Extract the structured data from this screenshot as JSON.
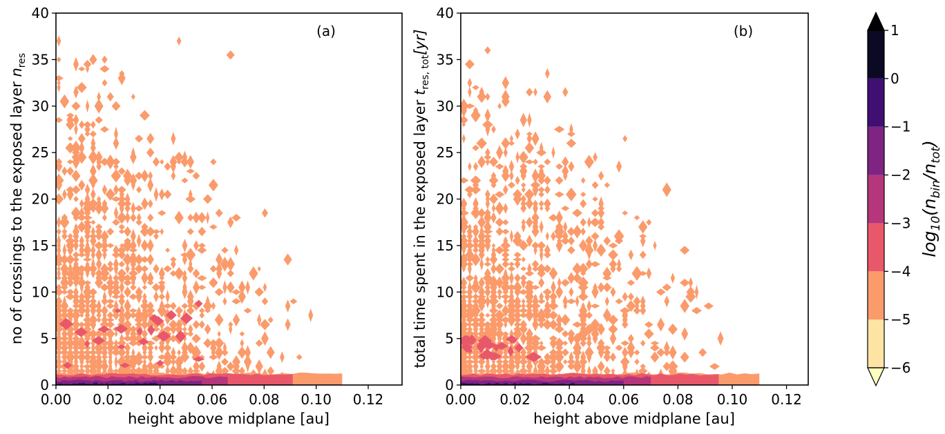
{
  "chart_data": [
    {
      "type": "heatmap",
      "panel_label": "(a)",
      "xlabel": "height above midplane [au]",
      "ylabel": "no of crossings to the exposed layer n_res",
      "ylabel_text": "no of crossings to the exposed layer ",
      "ylabel_var": "n",
      "ylabel_sub": "res",
      "xlim": [
        0,
        0.133
      ],
      "ylim": [
        0,
        40
      ],
      "xticks": [
        "0.00",
        "0.02",
        "0.04",
        "0.06",
        "0.08",
        "0.10",
        "0.12"
      ],
      "yticks": [
        "0",
        "5",
        "10",
        "15",
        "20",
        "25",
        "30",
        "35",
        "40"
      ],
      "density_summary": {
        "max_extent_x": 0.11,
        "max_extent_y": 40,
        "dense_core": {
          "x": [
            0,
            0.056
          ],
          "y": [
            0,
            1.2
          ],
          "level": "-2 to 0"
        },
        "mid_band": {
          "x": [
            0,
            0.055
          ],
          "y": [
            2,
            9
          ],
          "level": "-4 to -3"
        },
        "sparse": {
          "level": "-5 to -4"
        }
      }
    },
    {
      "type": "heatmap",
      "panel_label": "(b)",
      "xlabel": "height above midplane [au]",
      "ylabel": "total time spent in the exposed layer t_res,tot[yr]",
      "ylabel_text": "total time spent in the exposed layer ",
      "ylabel_var": "t",
      "ylabel_sub": "res, tot",
      "ylabel_tail": "[yr]",
      "xlim": [
        0,
        0.128
      ],
      "ylim": [
        0,
        40
      ],
      "xticks": [
        "0.00",
        "0.02",
        "0.04",
        "0.06",
        "0.08",
        "0.10",
        "0.12"
      ],
      "yticks": [
        "0",
        "5",
        "10",
        "15",
        "20",
        "25",
        "30",
        "35",
        "40"
      ],
      "density_summary": {
        "max_extent_x": 0.11,
        "max_extent_y": 39,
        "dense_core": {
          "x": [
            0,
            0.06
          ],
          "y": [
            0,
            1.2
          ],
          "level": "-2 to 0"
        },
        "mid_band": {
          "x": [
            0,
            0.035
          ],
          "y": [
            3,
            5
          ],
          "level": "-4 to -3"
        },
        "sparse": {
          "level": "-5 to -4"
        }
      }
    }
  ],
  "colorbar": {
    "label": "log10(n_bin/n_tot)",
    "label_prefix": "log",
    "label_sub": "10",
    "label_body": "(n",
    "label_bin": "bin",
    "label_slash": "/n",
    "label_tot": "tot",
    "label_close": ")",
    "ticks": [
      "1",
      "0",
      "−1",
      "−2",
      "−3",
      "−4",
      "−5",
      "−6"
    ],
    "levels": [
      -6,
      -5,
      -4,
      -3,
      -2,
      -1,
      0,
      1
    ],
    "colors": [
      "#fde4a5",
      "#fb9b6b",
      "#e8586a",
      "#b5367a",
      "#7e2483",
      "#3f0f72",
      "#0b0924"
    ],
    "extend_min_color": "#fcfdbf",
    "extend_max_color": "#000004"
  }
}
